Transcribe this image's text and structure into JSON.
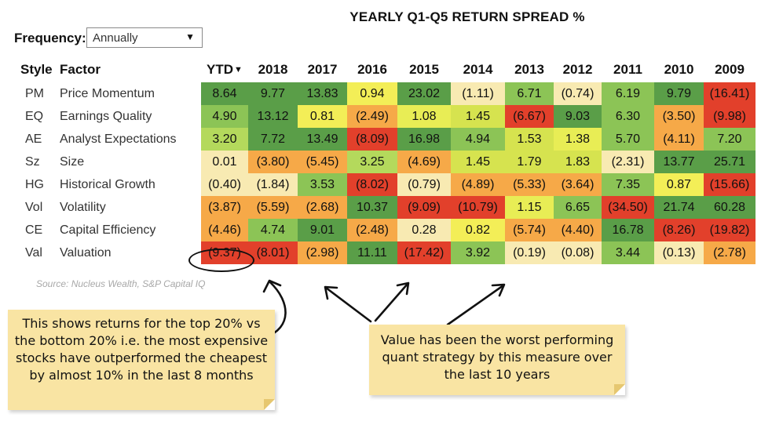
{
  "title": "YEARLY Q1-Q5 RETURN SPREAD %",
  "frequency": {
    "label": "Frequency:",
    "value": "Annually"
  },
  "source": "Source: Nucleus Wealth, S&P Capital IQ",
  "annotations": {
    "note1": "This shows returns for the top 20% vs the bottom 20% i.e. the most expensive stocks have outperformed the cheapest by almost 10% in the last 8 months",
    "note2": "Value has been the worst performing quant strategy by this measure over the last 10 years"
  },
  "colors": {
    "deep_green": "#5a9e48",
    "mid_green": "#8cc456",
    "light_green": "#b4d95c",
    "yellow_green": "#d6e34f",
    "yellow": "#f3ee57",
    "cream": "#f8eab2",
    "orange": "#f6a948",
    "red": "#e2402b",
    "note": "#f9e4a3"
  },
  "chart_data": {
    "type": "heatmap",
    "title": "YEARLY Q1-Q5 RETURN SPREAD %",
    "header_style": "Style",
    "header_factor": "Factor",
    "columns": [
      "YTD",
      "2018",
      "2017",
      "2016",
      "2015",
      "2014",
      "2013",
      "2012",
      "2011",
      "2010",
      "2009"
    ],
    "rows": [
      {
        "code": "PM",
        "name": "Price Momentum",
        "labels": [
          "8.64",
          "9.77",
          "13.83",
          "0.94",
          "23.02",
          "(1.11)",
          "6.71",
          "(0.74)",
          "6.19",
          "9.79",
          "(16.41)"
        ],
        "values": [
          8.64,
          9.77,
          13.83,
          0.94,
          23.02,
          -1.11,
          6.71,
          -0.74,
          6.19,
          9.79,
          -16.41
        ],
        "colors": [
          "#5a9e48",
          "#5a9e48",
          "#5a9e48",
          "#f3ee57",
          "#5a9e48",
          "#f8eab2",
          "#8cc456",
          "#f8eab2",
          "#8cc456",
          "#5a9e48",
          "#e2402b"
        ]
      },
      {
        "code": "EQ",
        "name": "Earnings Quality",
        "labels": [
          "4.90",
          "13.12",
          "0.81",
          "(2.49)",
          "1.08",
          "1.45",
          "(6.67)",
          "9.03",
          "6.30",
          "(3.50)",
          "(9.98)"
        ],
        "values": [
          4.9,
          13.12,
          0.81,
          -2.49,
          1.08,
          1.45,
          -6.67,
          9.03,
          6.3,
          -3.5,
          -9.98
        ],
        "colors": [
          "#8cc456",
          "#5a9e48",
          "#f3ee57",
          "#f6a948",
          "#e8ed55",
          "#d6e34f",
          "#e2402b",
          "#5a9e48",
          "#8cc456",
          "#f6a948",
          "#e2402b"
        ]
      },
      {
        "code": "AE",
        "name": "Analyst Expectations",
        "labels": [
          "3.20",
          "7.72",
          "13.49",
          "(8.09)",
          "16.98",
          "4.94",
          "1.53",
          "1.38",
          "5.70",
          "(4.11)",
          "7.20"
        ],
        "values": [
          3.2,
          7.72,
          13.49,
          -8.09,
          16.98,
          4.94,
          1.53,
          1.38,
          5.7,
          -4.11,
          7.2
        ],
        "colors": [
          "#b4d95c",
          "#5a9e48",
          "#5a9e48",
          "#e2402b",
          "#5a9e48",
          "#8cc456",
          "#d6e34f",
          "#e8ed55",
          "#8cc456",
          "#f6a948",
          "#8cc456"
        ]
      },
      {
        "code": "Sz",
        "name": "Size",
        "labels": [
          "0.01",
          "(3.80)",
          "(5.45)",
          "3.25",
          "(4.69)",
          "1.45",
          "1.79",
          "1.83",
          "(2.31)",
          "13.77",
          "25.71"
        ],
        "values": [
          0.01,
          -3.8,
          -5.45,
          3.25,
          -4.69,
          1.45,
          1.79,
          1.83,
          -2.31,
          13.77,
          25.71
        ],
        "colors": [
          "#f8eab2",
          "#f6a948",
          "#f6a948",
          "#b4d95c",
          "#f6a948",
          "#d6e34f",
          "#d6e34f",
          "#d6e34f",
          "#f8eab2",
          "#5a9e48",
          "#5a9e48"
        ]
      },
      {
        "code": "HG",
        "name": "Historical Growth",
        "labels": [
          "(0.40)",
          "(1.84)",
          "3.53",
          "(8.02)",
          "(0.79)",
          "(4.89)",
          "(5.33)",
          "(3.64)",
          "7.35",
          "0.87",
          "(15.66)"
        ],
        "values": [
          -0.4,
          -1.84,
          3.53,
          -8.02,
          -0.79,
          -4.89,
          -5.33,
          -3.64,
          7.35,
          0.87,
          -15.66
        ],
        "colors": [
          "#f8eab2",
          "#f8eab2",
          "#8cc456",
          "#e2402b",
          "#f8eab2",
          "#f6a948",
          "#f6a948",
          "#f6a948",
          "#8cc456",
          "#f3ee57",
          "#e2402b"
        ]
      },
      {
        "code": "Vol",
        "name": "Volatility",
        "labels": [
          "(3.87)",
          "(5.59)",
          "(2.68)",
          "10.37",
          "(9.09)",
          "(10.79)",
          "1.15",
          "6.65",
          "(34.50)",
          "21.74",
          "60.28"
        ],
        "values": [
          -3.87,
          -5.59,
          -2.68,
          10.37,
          -9.09,
          -10.79,
          1.15,
          6.65,
          -34.5,
          21.74,
          60.28
        ],
        "colors": [
          "#f6a948",
          "#f6a948",
          "#f6a948",
          "#5a9e48",
          "#e2402b",
          "#e2402b",
          "#e8ed55",
          "#8cc456",
          "#e2402b",
          "#5a9e48",
          "#5a9e48"
        ]
      },
      {
        "code": "CE",
        "name": "Capital Efficiency",
        "labels": [
          "(4.46)",
          "4.74",
          "9.01",
          "(2.48)",
          "0.28",
          "0.82",
          "(5.74)",
          "(4.40)",
          "16.78",
          "(8.26)",
          "(19.82)"
        ],
        "values": [
          -4.46,
          4.74,
          9.01,
          -2.48,
          0.28,
          0.82,
          -5.74,
          -4.4,
          16.78,
          -8.26,
          -19.82
        ],
        "colors": [
          "#f6a948",
          "#8cc456",
          "#5a9e48",
          "#f6a948",
          "#f8eab2",
          "#f3ee57",
          "#f6a948",
          "#f6a948",
          "#5a9e48",
          "#e2402b",
          "#e2402b"
        ]
      },
      {
        "code": "Val",
        "name": "Valuation",
        "labels": [
          "(9.37)",
          "(8.01)",
          "(2.98)",
          "11.11",
          "(17.42)",
          "3.92",
          "(0.19)",
          "(0.08)",
          "3.44",
          "(0.13)",
          "(2.78)"
        ],
        "values": [
          -9.37,
          -8.01,
          -2.98,
          11.11,
          -17.42,
          3.92,
          -0.19,
          -0.08,
          3.44,
          -0.13,
          -2.78
        ],
        "colors": [
          "#e2402b",
          "#e2402b",
          "#f6a948",
          "#5a9e48",
          "#e2402b",
          "#8cc456",
          "#f8eab2",
          "#f8eab2",
          "#8cc456",
          "#f8eab2",
          "#f6a948"
        ]
      }
    ]
  }
}
